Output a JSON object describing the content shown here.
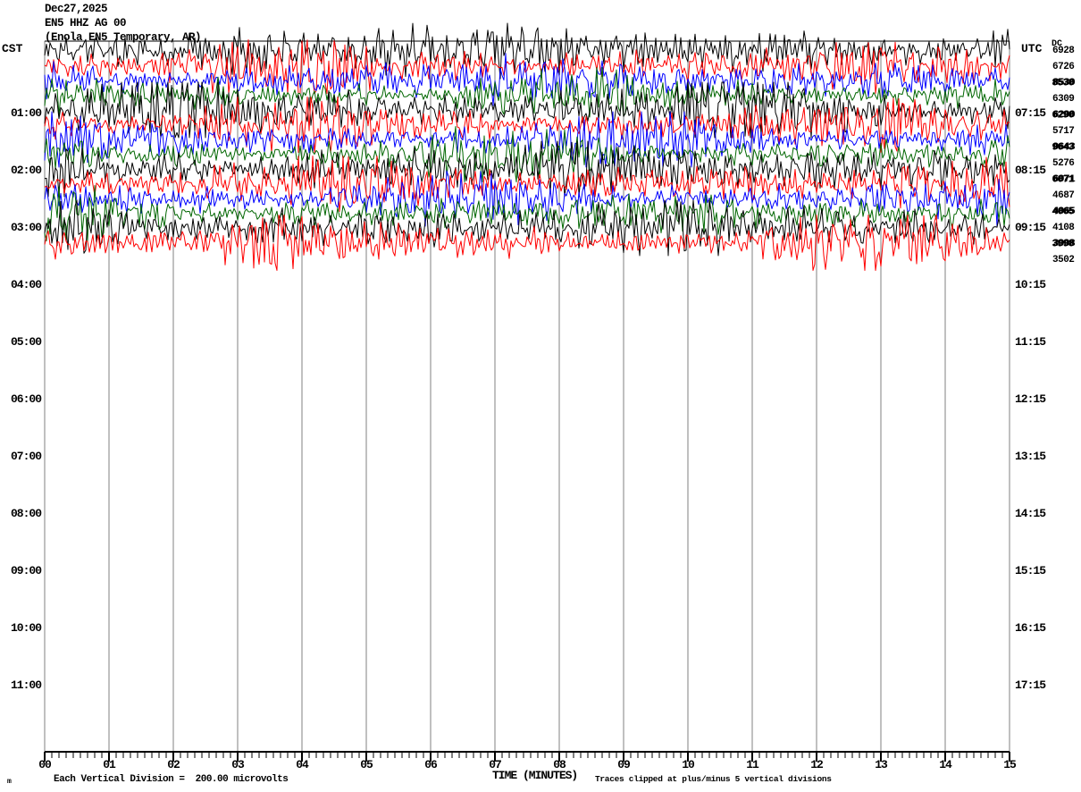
{
  "header": {
    "date": "Dec27,2025",
    "station_line": "EN5 HHZ AG 00",
    "description_line": "(Enola EN5 Temporary, AR)"
  },
  "left_axis": {
    "zone_label": "CST",
    "hour_ticks": [
      "01:00",
      "02:00",
      "03:00",
      "04:00",
      "05:00",
      "06:00",
      "07:00",
      "08:00",
      "09:00",
      "10:00",
      "11:00"
    ]
  },
  "right_axis": {
    "zone_label": "UTC",
    "dc_header": "DC",
    "hour_ticks": [
      "07:15",
      "08:15",
      "09:15",
      "10:15",
      "11:15",
      "12:15",
      "13:15",
      "14:15",
      "15:15",
      "16:15",
      "17:15"
    ],
    "dc_values": [
      {
        "value": "6928",
        "overstruck": false
      },
      {
        "value": "6726",
        "overstruck": false
      },
      {
        "value": "8530",
        "overstruck": true
      },
      {
        "value": "6309",
        "overstruck": false
      },
      {
        "value": "6290",
        "overstruck": true
      },
      {
        "value": "5717",
        "overstruck": false
      },
      {
        "value": "9643",
        "overstruck": true
      },
      {
        "value": "5276",
        "overstruck": false
      },
      {
        "value": "6071",
        "overstruck": true
      },
      {
        "value": "4687",
        "overstruck": false
      },
      {
        "value": "4065",
        "overstruck": true
      },
      {
        "value": "4108",
        "overstruck": false
      },
      {
        "value": "3998",
        "overstruck": true
      },
      {
        "value": "3502",
        "overstruck": false
      }
    ]
  },
  "x_axis": {
    "title": "TIME (MINUTES)",
    "minute_labels": [
      "00",
      "01",
      "02",
      "03",
      "04",
      "05",
      "06",
      "07",
      "08",
      "09",
      "10",
      "11",
      "12",
      "13",
      "14",
      "15"
    ]
  },
  "footer": {
    "left_note": "Each Vertical Division =  200.00 microvolts",
    "right_note": "Traces clipped at plus/minus 5 vertical divisions",
    "corner_mark": "m"
  },
  "colors": {
    "trace_cycle": [
      "#000000",
      "#ff0000",
      "#0000ff",
      "#006600"
    ],
    "grid": "#808080",
    "axis": "#000000",
    "text": "#000000",
    "background": "#ffffff"
  },
  "chart_data": {
    "type": "line",
    "subtype": "seismogram-helicorder",
    "title": "Dec27,2025 EN5 HHZ AG 00 (Enola EN5 Temporary, AR)",
    "xlabel": "TIME (MINUTES)",
    "x_range_minutes": [
      0,
      15
    ],
    "minutes_per_line": 15,
    "lines_per_hour": 4,
    "vertical_division_microvolts": 200.0,
    "clip_divisions": 5,
    "grid": "vertical gridlines at every minute",
    "active_trace_rows": 14,
    "trace_color_cycle": [
      "black",
      "red",
      "blue",
      "green"
    ],
    "traces": [
      {
        "row": 1,
        "color": "black",
        "dc": "6928"
      },
      {
        "row": 2,
        "color": "red",
        "dc": "6726"
      },
      {
        "row": 3,
        "color": "blue",
        "dc": "8530"
      },
      {
        "row": 4,
        "color": "green",
        "dc": "6309"
      },
      {
        "row": 5,
        "color": "black",
        "dc": "6290"
      },
      {
        "row": 6,
        "color": "red",
        "dc": "5717"
      },
      {
        "row": 7,
        "color": "blue",
        "dc": "9643"
      },
      {
        "row": 8,
        "color": "green",
        "dc": "5276"
      },
      {
        "row": 9,
        "color": "black",
        "dc": "6071"
      },
      {
        "row": 10,
        "color": "red",
        "dc": "4687"
      },
      {
        "row": 11,
        "color": "blue",
        "dc": "4065"
      },
      {
        "row": 12,
        "color": "green",
        "dc": "4108"
      },
      {
        "row": 13,
        "color": "black",
        "dc": "3998"
      },
      {
        "row": 14,
        "color": "red",
        "dc": "3502"
      }
    ],
    "waveform_description": "continuous high-frequency noise/tremor filling all 14 recorded rows edge to edge; remaining rows blank"
  }
}
